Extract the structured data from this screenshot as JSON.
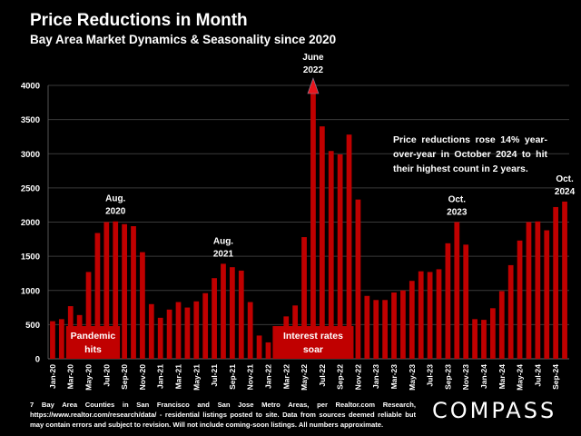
{
  "header": {
    "title": "Price Reductions in Month",
    "subtitle": "Bay Area Market Dynamics & Seasonality since 2020"
  },
  "note": "Price reductions rose 14% year-over-year in October 2024 to hit their highest count in 2 years.",
  "footnote": "7 Bay Area Counties in San Francisco and San Jose Metro Areas, per Realtor.com Research, https://www.realtor.com/research/data/ - residential listings posted to site. Data from sources deemed reliable but may contain errors and subject to revision. Will not include coming-soon listings. All numbers approximate.",
  "logo": "COMPASS",
  "colors": {
    "bar": "#c00000",
    "background": "#000000",
    "grid": "#3a3a3a",
    "arrow": "#e8141b"
  },
  "chart_data": {
    "type": "bar",
    "title": "Price Reductions in Month",
    "subtitle": "Bay Area Market Dynamics & Seasonality since 2020",
    "xlabel": "",
    "ylabel": "",
    "ylim": [
      0,
      4000
    ],
    "yticks": [
      0,
      500,
      1000,
      1500,
      2000,
      2500,
      3000,
      3500,
      4000
    ],
    "grid": true,
    "categories": [
      "Jan-20",
      "Feb-20",
      "Mar-20",
      "Apr-20",
      "May-20",
      "Jun-20",
      "Jul-20",
      "Aug-20",
      "Sep-20",
      "Oct-20",
      "Nov-20",
      "Dec-20",
      "Jan-21",
      "Feb-21",
      "Mar-21",
      "Apr-21",
      "May-21",
      "Jun-21",
      "Jul-21",
      "Aug-21",
      "Sep-21",
      "Oct-21",
      "Nov-21",
      "Dec-21",
      "Jan-22",
      "Feb-22",
      "Mar-22",
      "Apr-22",
      "May-22",
      "Jun-22",
      "Jul-22",
      "Aug-22",
      "Sep-22",
      "Oct-22",
      "Nov-22",
      "Dec-22",
      "Jan-23",
      "Feb-23",
      "Mar-23",
      "Apr-23",
      "May-23",
      "Jun-23",
      "Jul-23",
      "Aug-23",
      "Sep-23",
      "Oct-23",
      "Nov-23",
      "Dec-23",
      "Jan-24",
      "Feb-24",
      "Mar-24",
      "Apr-24",
      "May-24",
      "Jun-24",
      "Jul-24",
      "Aug-24",
      "Sep-24",
      "Oct-24"
    ],
    "tick_labels_shown": [
      "Jan-20",
      "Mar-20",
      "May-20",
      "Jul-20",
      "Sep-20",
      "Nov-20",
      "Jan-21",
      "Mar-21",
      "May-21",
      "Jul-21",
      "Sep-21",
      "Nov-21",
      "Jan-22",
      "Mar-22",
      "May-22",
      "Jul-22",
      "Sep-22",
      "Nov-22",
      "Jan-23",
      "Mar-23",
      "May-23",
      "Jul-23",
      "Sep-23",
      "Nov-23",
      "Jan-24",
      "Mar-24",
      "May-24",
      "Jul-24",
      "Sep-24"
    ],
    "values": [
      550,
      580,
      770,
      640,
      1270,
      1840,
      2000,
      2010,
      1970,
      1940,
      1560,
      800,
      600,
      720,
      830,
      750,
      840,
      960,
      1180,
      1390,
      1340,
      1290,
      830,
      340,
      240,
      410,
      620,
      780,
      1780,
      3900,
      3400,
      3040,
      2990,
      3280,
      2330,
      920,
      860,
      860,
      970,
      1000,
      1140,
      1280,
      1270,
      1310,
      1690,
      2000,
      1670,
      580,
      570,
      740,
      990,
      1370,
      1730,
      2000,
      2010,
      1880,
      2220,
      2300
    ],
    "annotations": [
      {
        "label_line1": "Aug.",
        "label_line2": "2020",
        "category": "Aug-20"
      },
      {
        "label_line1": "Aug.",
        "label_line2": "2021",
        "category": "Aug-21"
      },
      {
        "label_line1": "June",
        "label_line2": "2022",
        "category": "Jun-22",
        "arrow": true
      },
      {
        "label_line1": "Oct.",
        "label_line2": "2023",
        "category": "Oct-23"
      },
      {
        "label_line1": "Oct.",
        "label_line2": "2024",
        "category": "Oct-24"
      }
    ],
    "event_boxes": [
      {
        "line1": "Pandemic",
        "line2": "hits",
        "from": "Mar-20",
        "to": "Aug-20"
      },
      {
        "line1": "Interest rates",
        "line2": "soar",
        "from": "Feb-22",
        "to": "Oct-22"
      }
    ]
  }
}
